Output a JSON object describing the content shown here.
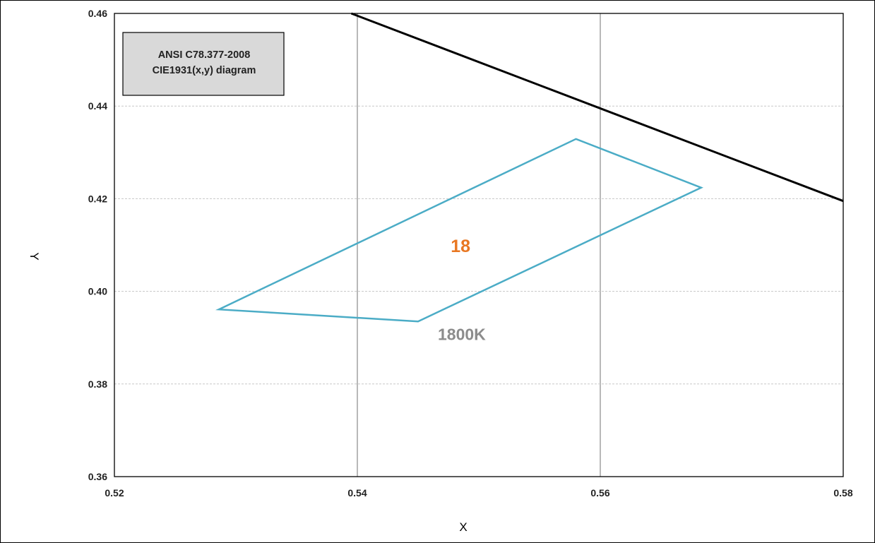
{
  "chart_data": {
    "type": "line",
    "title": "",
    "xlabel": "X",
    "ylabel": "Y",
    "xlim": [
      0.52,
      0.58
    ],
    "ylim": [
      0.36,
      0.46
    ],
    "x_ticks": [
      "0.52",
      "0.54",
      "0.56",
      "0.58"
    ],
    "y_ticks": [
      "0.36",
      "0.38",
      "0.40",
      "0.42",
      "0.44",
      "0.46"
    ],
    "grid": "on",
    "legend": {
      "placement": "top-left",
      "lines": [
        "ANSI C78.377-2008",
        "CIE1931(x,y) diagram"
      ]
    },
    "series": [
      {
        "color": "#000000",
        "points": [
          [
            0.5395,
            0.46
          ],
          [
            0.58,
            0.4195
          ]
        ]
      },
      {
        "color": "#4bacc6",
        "closed": true,
        "points": [
          [
            0.5286,
            0.3961
          ],
          [
            0.558,
            0.4329
          ],
          [
            0.5683,
            0.4224
          ],
          [
            0.545,
            0.3935
          ]
        ]
      }
    ],
    "annotations": [
      {
        "text": "18",
        "x": 0.5485,
        "y": 0.4085,
        "color": "#e87722"
      },
      {
        "text": "1800K",
        "x": 0.5486,
        "y": 0.3895,
        "color": "#8c8c8c"
      }
    ],
    "colors": {
      "plot_border": "#000000",
      "gridline_vertical": "#8a8a8a",
      "gridline_horizontal": "#c8c8c8",
      "legend_fill": "#d9d9d9"
    }
  }
}
